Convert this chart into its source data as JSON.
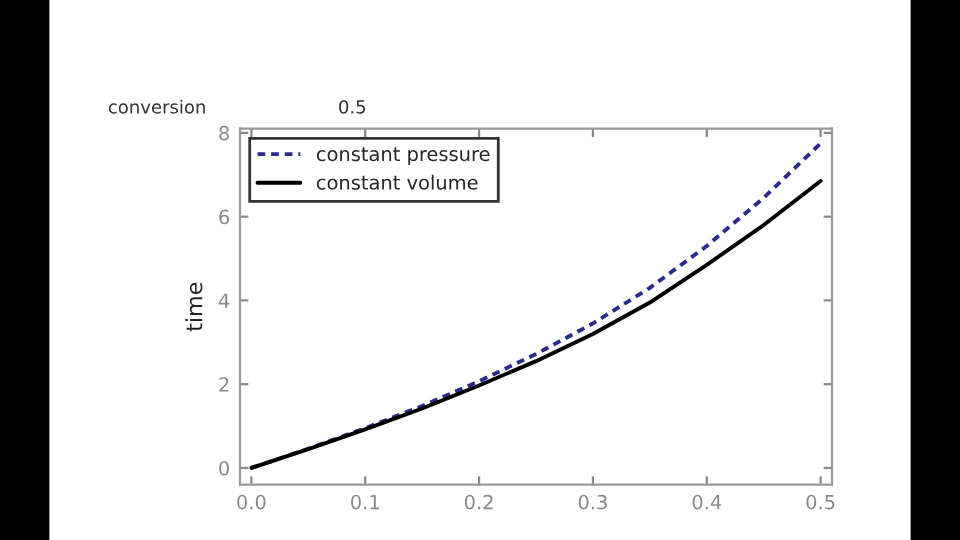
{
  "chart_data": {
    "type": "line",
    "ylabel": "time",
    "x": [
      0,
      0.05,
      0.1,
      0.15,
      0.2,
      0.25,
      0.3,
      0.35,
      0.4,
      0.45,
      0.5
    ],
    "series": [
      {
        "name": "constant pressure",
        "color": "#2b2b8c",
        "line_style": "dashed",
        "values": [
          0,
          0.46,
          0.95,
          1.48,
          2.07,
          2.72,
          3.45,
          4.3,
          5.3,
          6.45,
          7.75
        ]
      },
      {
        "name": "constant volume",
        "color": "#000000",
        "line_style": "solid",
        "values": [
          0,
          0.45,
          0.92,
          1.42,
          1.97,
          2.55,
          3.2,
          3.95,
          4.85,
          5.8,
          6.85
        ]
      }
    ],
    "xlim": [
      -0.01,
      0.51
    ],
    "ylim": [
      -0.4,
      8.1
    ],
    "xticks": [
      {
        "value": 0,
        "label": "0.0"
      },
      0.1,
      0.2,
      0.3,
      0.4,
      0.5
    ],
    "yticks": [
      0,
      2,
      4,
      6,
      8
    ],
    "grid": false,
    "legend": "top left",
    "marker": "none",
    "annotations": [
      "conversion",
      "0.5"
    ]
  }
}
